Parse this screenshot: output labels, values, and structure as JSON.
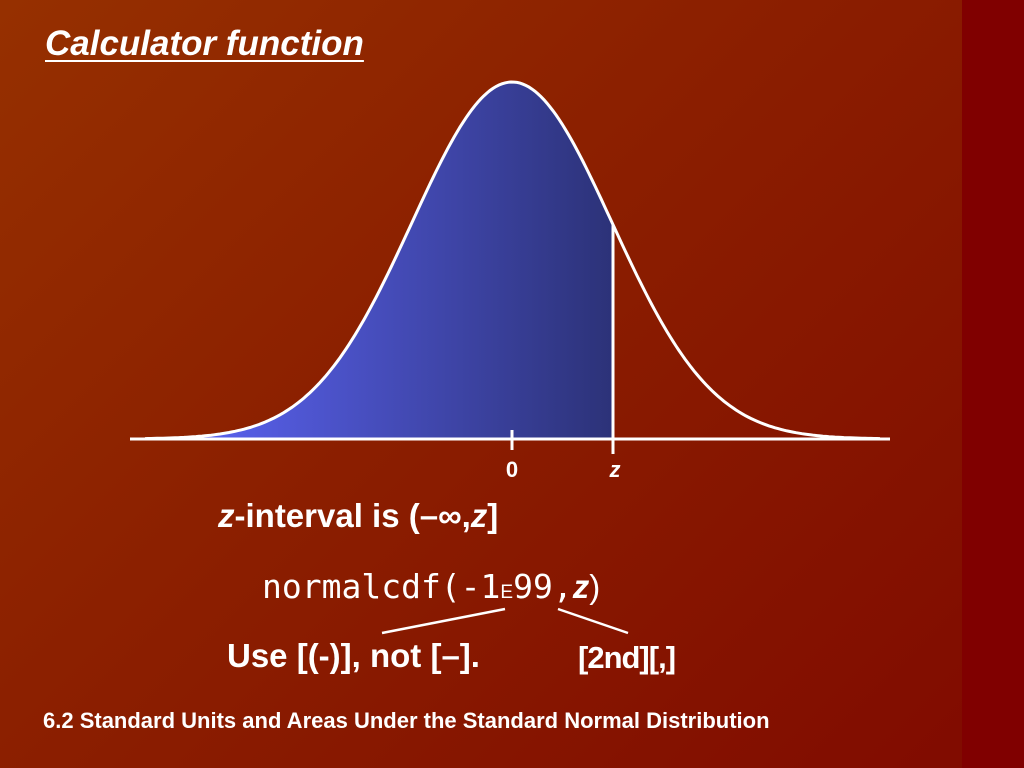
{
  "slide": {
    "title": "Calculator function",
    "footer": "6.2 Standard Units and Areas Under the Standard Normal Distribution"
  },
  "diagram": {
    "type": "standard-normal-curve",
    "shaded_region": "left tail up to z",
    "tick_labels": {
      "zero": "0",
      "z": "z"
    },
    "colors": {
      "shade_left": "#6068ff",
      "shade_right": "#2c3278",
      "curve": "#ffffff",
      "background": "#8c2000"
    }
  },
  "interval_line": {
    "var": "z",
    "text": "-interval is (–∞,",
    "var2": "z",
    "close": "]"
  },
  "formula": {
    "fn": "normalcdf(-1",
    "exp": "E",
    "rest": "99,",
    "var": "z",
    "close": ")"
  },
  "hints": {
    "left": "Use [(-)], not [–].",
    "right": "[2nd][,]"
  }
}
